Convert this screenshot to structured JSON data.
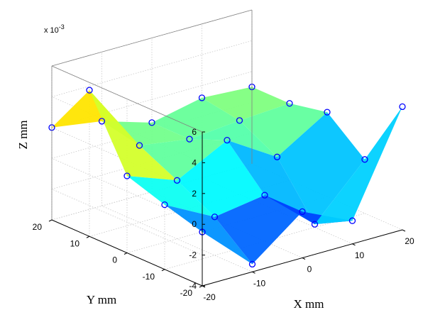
{
  "chart_data": {
    "type": "surface3d",
    "xlabel": "X mm",
    "ylabel": "Y mm",
    "zlabel": "Z mm",
    "z_exponent_label": "x 10",
    "z_exponent_power": "-3",
    "xlim": [
      -20,
      20
    ],
    "ylim": [
      -20,
      20
    ],
    "zlim": [
      -4,
      6
    ],
    "xticks": [
      "-20",
      "-10",
      "0",
      "10",
      "20"
    ],
    "yticks": [
      "-20",
      "-10",
      "0",
      "10",
      "20"
    ],
    "zticks": [
      "-4",
      "-2",
      "0",
      "2",
      "4",
      "6"
    ],
    "grid": true,
    "colormap": "jet",
    "marker": "open-circle",
    "marker_color": "#0000ff",
    "x": [
      -20,
      -10,
      0,
      10,
      20
    ],
    "y": [
      -20,
      -10,
      0,
      10,
      20
    ],
    "z": [
      [
        -0.5,
        -3.5,
        -1.0,
        -2.5,
        4.0
      ],
      [
        0.2,
        -1.5,
        -1.0,
        -3.8,
        -0.5
      ],
      [
        1.0,
        -0.2,
        1.5,
        -0.5,
        1.5
      ],
      [
        5.5,
        1.0,
        0.5,
        0.8,
        1.0
      ],
      [
        2.0,
        1.5,
        0.5,
        1.2,
        1.0
      ]
    ]
  }
}
